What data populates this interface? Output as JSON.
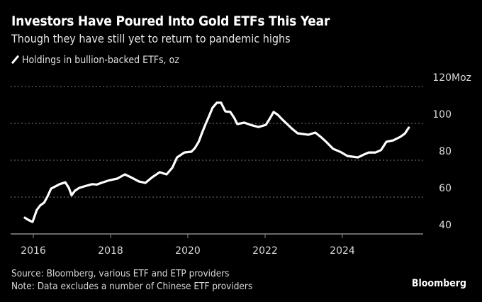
{
  "header": {
    "title": "Investors Have Poured Into Gold ETFs This Year",
    "subtitle": "Though they have still yet to return to pandemic highs"
  },
  "footer": {
    "source": "Source: Bloomberg, various ETF and ETP providers",
    "note": "Note: Data excludes a number of Chinese ETF providers",
    "brand": "Bloomberg"
  },
  "chart_data": {
    "type": "line",
    "title": "Investors Have Poured Into Gold ETFs This Year",
    "subtitle": "Though they have still yet to return to pandemic highs",
    "xlabel": "",
    "ylabel": "Moz",
    "legend": {
      "position": "top-left",
      "entries": [
        "Holdings in bullion-backed ETFs, oz"
      ]
    },
    "grid": true,
    "xlim": [
      2015.6,
      2025.98
    ],
    "ylim": [
      40,
      120
    ],
    "x_ticks": [
      2016,
      2018,
      2020,
      2022,
      2024
    ],
    "x_tick_labels": [
      "2016",
      "2018",
      "2020",
      "2022",
      "2024"
    ],
    "y_ticks": [
      40,
      60,
      80,
      100,
      120
    ],
    "y_tick_labels": [
      "40",
      "60",
      "80",
      "100",
      "120Moz"
    ],
    "series": [
      {
        "name": "Holdings in bullion-backed ETFs, oz",
        "color": "#ffffff",
        "x": [
          2015.78,
          2015.88,
          2015.98,
          2016.09,
          2016.18,
          2016.28,
          2016.37,
          2016.46,
          2016.57,
          2016.68,
          2016.83,
          2016.92,
          2016.99,
          2017.08,
          2017.19,
          2017.35,
          2017.52,
          2017.65,
          2017.76,
          2017.95,
          2018.17,
          2018.37,
          2018.55,
          2018.73,
          2018.9,
          2019.08,
          2019.27,
          2019.45,
          2019.6,
          2019.72,
          2019.91,
          2020.09,
          2020.18,
          2020.28,
          2020.37,
          2020.46,
          2020.55,
          2020.64,
          2020.75,
          2020.86,
          2020.97,
          2021.1,
          2021.2,
          2021.28,
          2021.46,
          2021.65,
          2021.83,
          2022.02,
          2022.12,
          2022.22,
          2022.33,
          2022.45,
          2022.57,
          2022.7,
          2022.84,
          2023.12,
          2023.3,
          2023.45,
          2023.58,
          2023.76,
          2023.95,
          2024.13,
          2024.4,
          2024.55,
          2024.68,
          2024.86,
          2025.0,
          2025.14,
          2025.32,
          2025.5,
          2025.62,
          2025.72
        ],
        "y": [
          48.8,
          47.5,
          46.5,
          53.0,
          55.5,
          57.0,
          60.5,
          64.6,
          65.8,
          67.0,
          68.0,
          65.0,
          61.0,
          63.5,
          65.0,
          66.0,
          67.0,
          66.8,
          67.7,
          69.0,
          70.0,
          72.3,
          70.5,
          68.5,
          67.7,
          70.8,
          73.5,
          72.3,
          76.0,
          81.5,
          84.2,
          84.6,
          86.5,
          90.0,
          95.0,
          99.6,
          104.0,
          108.5,
          111.2,
          111.2,
          106.5,
          106.2,
          103.0,
          99.6,
          100.4,
          99.0,
          98.0,
          99.2,
          102.5,
          106.2,
          104.6,
          102.0,
          99.6,
          97.0,
          94.6,
          93.8,
          95.0,
          92.5,
          90.0,
          86.2,
          84.5,
          82.3,
          81.5,
          83.0,
          84.2,
          84.2,
          85.5,
          90.0,
          90.8,
          92.7,
          94.5,
          97.7
        ]
      }
    ]
  }
}
